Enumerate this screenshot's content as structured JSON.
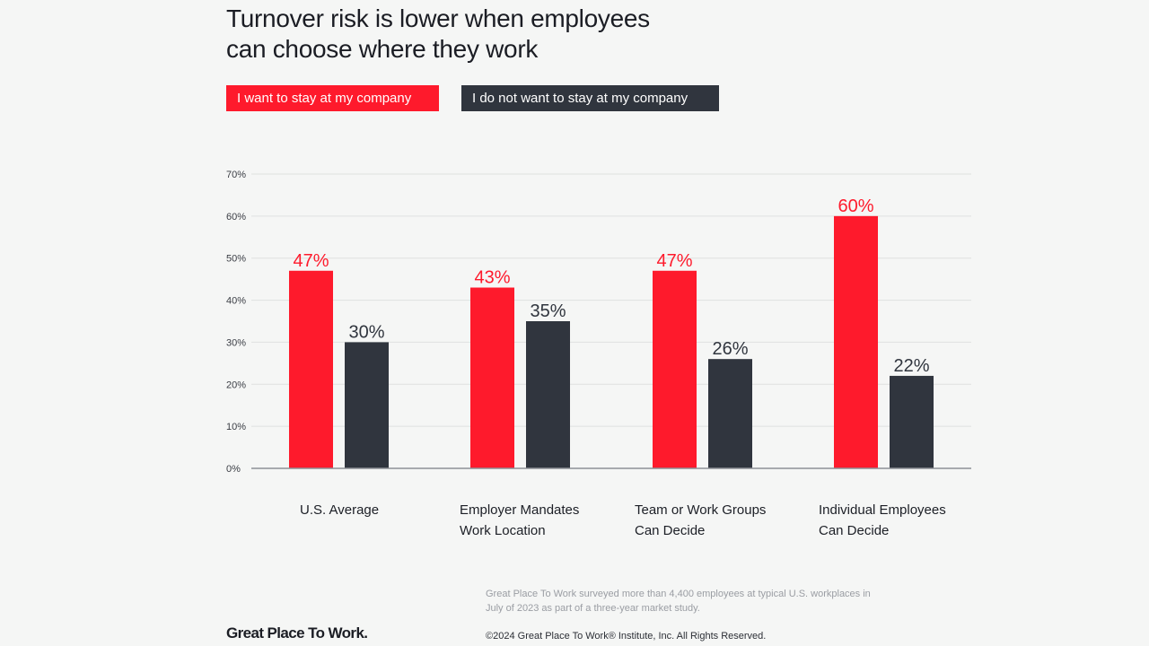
{
  "title_lines": [
    "Turnover risk is lower when employees",
    "can choose where they work"
  ],
  "colors": {
    "stay": "#fe1a2c",
    "leave": "#30353e",
    "grid": "#dfe1e0",
    "axis": "#8d9096",
    "background": "#f5f6f5"
  },
  "chart_data": {
    "type": "bar",
    "categories": [
      "U.S. Average",
      "Employer Mandates Work Location",
      "Team or Work Groups Can Decide",
      "Individual Employees Can Decide"
    ],
    "category_lines": [
      [
        "U.S. Average"
      ],
      [
        "Employer Mandates",
        "Work Location"
      ],
      [
        "Team or Work Groups",
        "Can Decide"
      ],
      [
        "Individual Employees",
        "Can Decide"
      ]
    ],
    "series": [
      {
        "name": "I want to stay at my company",
        "values": [
          47,
          43,
          47,
          60
        ],
        "labels": [
          "47%",
          "43%",
          "47%",
          "60%"
        ],
        "color": "#fe1a2c"
      },
      {
        "name": "I do not want to stay at my company",
        "values": [
          30,
          35,
          26,
          22
        ],
        "labels": [
          "30%",
          "35%",
          "26%",
          "22%"
        ],
        "color": "#30353e"
      }
    ],
    "ylim": [
      0,
      70
    ],
    "yticks": [
      "0%",
      "10%",
      "20%",
      "30%",
      "40%",
      "50%",
      "60%",
      "70%"
    ],
    "grid": true,
    "legend_position": "top-left"
  },
  "footnote_lines": [
    "Great Place To Work surveyed more than 4,400 employees at typical U.S. workplaces in",
    "July of 2023 as part of a three-year market study."
  ],
  "copyright": "©2024 Great Place To Work® Institute, Inc. All Rights Reserved.",
  "logo": "Great Place To Work."
}
